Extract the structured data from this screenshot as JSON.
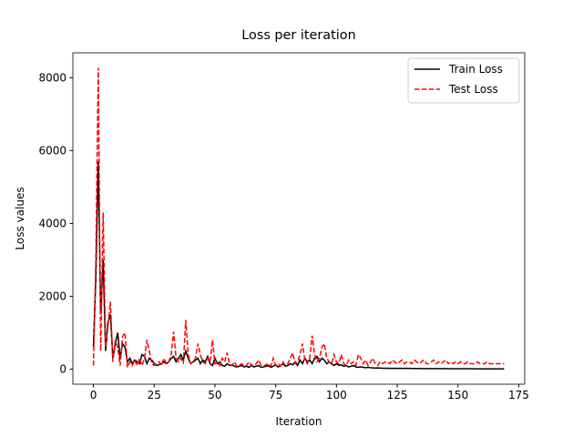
{
  "chart_data": {
    "type": "line",
    "title": "Loss per iteration",
    "xlabel": "Iteration",
    "ylabel": "Loss values",
    "xlim": [
      -8.45,
      177.45
    ],
    "xticks": [
      0,
      25,
      50,
      75,
      100,
      125,
      150,
      175
    ],
    "ylim": [
      -413,
      8683
    ],
    "yticks": [
      0,
      2000,
      4000,
      6000,
      8000
    ],
    "legend": "upper right",
    "x": [
      0,
      1,
      2,
      3,
      4,
      5,
      6,
      7,
      8,
      9,
      10,
      11,
      12,
      13,
      14,
      15,
      16,
      17,
      18,
      19,
      20,
      21,
      22,
      23,
      24,
      25,
      26,
      27,
      28,
      29,
      30,
      31,
      32,
      33,
      34,
      35,
      36,
      37,
      38,
      39,
      40,
      41,
      42,
      43,
      44,
      45,
      46,
      47,
      48,
      49,
      50,
      51,
      52,
      53,
      54,
      55,
      56,
      57,
      58,
      59,
      60,
      61,
      62,
      63,
      64,
      65,
      66,
      67,
      68,
      69,
      70,
      71,
      72,
      73,
      74,
      75,
      76,
      77,
      78,
      79,
      80,
      81,
      82,
      83,
      84,
      85,
      86,
      87,
      88,
      89,
      90,
      91,
      92,
      93,
      94,
      95,
      96,
      97,
      98,
      99,
      100,
      101,
      102,
      103,
      104,
      105,
      106,
      107,
      108,
      109,
      110,
      111,
      112,
      113,
      114,
      115,
      116,
      117,
      118,
      119,
      120,
      121,
      122,
      123,
      124,
      125,
      126,
      127,
      128,
      129,
      130,
      131,
      132,
      133,
      134,
      135,
      136,
      137,
      138,
      139,
      140,
      141,
      142,
      143,
      144,
      145,
      146,
      147,
      148,
      149,
      150,
      151,
      152,
      153,
      154,
      155,
      156,
      157,
      158,
      159,
      160,
      161,
      162,
      163,
      164,
      165,
      166,
      167,
      168,
      169
    ],
    "series": [
      {
        "name": "Train Loss",
        "color": "#000000",
        "dash": "solid",
        "values": [
          600,
          2500,
          5700,
          1500,
          3000,
          500,
          1300,
          1500,
          300,
          700,
          1000,
          300,
          700,
          600,
          200,
          300,
          150,
          250,
          200,
          150,
          400,
          350,
          150,
          300,
          250,
          150,
          100,
          120,
          150,
          200,
          150,
          200,
          300,
          350,
          200,
          300,
          400,
          250,
          500,
          300,
          150,
          200,
          250,
          300,
          150,
          250,
          200,
          350,
          150,
          100,
          300,
          150,
          200,
          100,
          80,
          150,
          100,
          120,
          80,
          60,
          80,
          100,
          60,
          80,
          50,
          100,
          60,
          80,
          100,
          50,
          60,
          80,
          100,
          50,
          80,
          120,
          60,
          100,
          150,
          80,
          100,
          150,
          120,
          200,
          100,
          250,
          150,
          300,
          200,
          250,
          150,
          300,
          350,
          200,
          300,
          250,
          150,
          200,
          150,
          100,
          150,
          100,
          120,
          80,
          100,
          60,
          80,
          100,
          60,
          50,
          60,
          50,
          40,
          50,
          40,
          35,
          30,
          35,
          30,
          25,
          25,
          25,
          20,
          20,
          20,
          20,
          20,
          20,
          20,
          20,
          20,
          18,
          18,
          18,
          18,
          15,
          15,
          15,
          15,
          15,
          15,
          15,
          15,
          15,
          15,
          15,
          12,
          12,
          12,
          12,
          12,
          12,
          12,
          12,
          12,
          12,
          12,
          10,
          10,
          10,
          10,
          10,
          10,
          10,
          10,
          10,
          10,
          10,
          10,
          10
        ]
      },
      {
        "name": "Test Loss",
        "color": "#ff0000",
        "dash": "dashed",
        "values": [
          100,
          3000,
          8270,
          500,
          4300,
          600,
          1200,
          1850,
          200,
          800,
          600,
          100,
          900,
          1000,
          50,
          200,
          100,
          250,
          100,
          300,
          100,
          300,
          800,
          500,
          150,
          100,
          150,
          200,
          100,
          300,
          150,
          200,
          400,
          1030,
          300,
          200,
          300,
          150,
          1350,
          400,
          150,
          200,
          300,
          700,
          400,
          200,
          150,
          300,
          200,
          800,
          150,
          200,
          100,
          300,
          200,
          450,
          150,
          100,
          200,
          80,
          100,
          150,
          80,
          100,
          200,
          120,
          80,
          150,
          250,
          100,
          80,
          120,
          150,
          80,
          300,
          100,
          150,
          80,
          200,
          100,
          150,
          300,
          450,
          150,
          200,
          400,
          700,
          250,
          150,
          300,
          920,
          400,
          200,
          300,
          600,
          700,
          300,
          200,
          150,
          400,
          200,
          150,
          400,
          150,
          100,
          250,
          150,
          200,
          100,
          400,
          300,
          150,
          250,
          100,
          200,
          300,
          150,
          100,
          200,
          150,
          200,
          200,
          150,
          250,
          200,
          150,
          200,
          250,
          150,
          200,
          200,
          150,
          250,
          200,
          150,
          200,
          250,
          150,
          150,
          200,
          250,
          150,
          200,
          150,
          200,
          250,
          150,
          200,
          150,
          200,
          150,
          200,
          150,
          150,
          200,
          150,
          150,
          150,
          200,
          150,
          150,
          150,
          200,
          150,
          150,
          150,
          150,
          150,
          150,
          150
        ]
      }
    ]
  }
}
